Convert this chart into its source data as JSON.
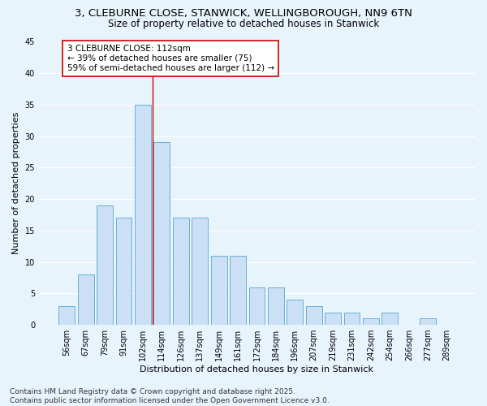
{
  "title_line1": "3, CLEBURNE CLOSE, STANWICK, WELLINGBOROUGH, NN9 6TN",
  "title_line2": "Size of property relative to detached houses in Stanwick",
  "xlabel": "Distribution of detached houses by size in Stanwick",
  "ylabel": "Number of detached properties",
  "categories": [
    "56sqm",
    "67sqm",
    "79sqm",
    "91sqm",
    "102sqm",
    "114sqm",
    "126sqm",
    "137sqm",
    "149sqm",
    "161sqm",
    "172sqm",
    "184sqm",
    "196sqm",
    "207sqm",
    "219sqm",
    "231sqm",
    "242sqm",
    "254sqm",
    "266sqm",
    "277sqm",
    "289sqm"
  ],
  "values": [
    3,
    8,
    19,
    17,
    35,
    29,
    17,
    17,
    11,
    11,
    6,
    6,
    4,
    3,
    2,
    2,
    1,
    2,
    0,
    1,
    0
  ],
  "bar_color": "#cce0f5",
  "bar_edge_color": "#6aaed6",
  "background_color": "#e8f4fc",
  "grid_color": "#ffffff",
  "vline_x_index": 4.5,
  "vline_color": "#cc0000",
  "annotation_text": "3 CLEBURNE CLOSE: 112sqm\n← 39% of detached houses are smaller (75)\n59% of semi-detached houses are larger (112) →",
  "annotation_box_color": "#ffffff",
  "annotation_box_edge_color": "#cc0000",
  "ylim": [
    0,
    45
  ],
  "yticks": [
    0,
    5,
    10,
    15,
    20,
    25,
    30,
    35,
    40,
    45
  ],
  "footer_text": "Contains HM Land Registry data © Crown copyright and database right 2025.\nContains public sector information licensed under the Open Government Licence v3.0.",
  "title_fontsize": 9.5,
  "subtitle_fontsize": 8.5,
  "axis_label_fontsize": 8,
  "tick_fontsize": 7,
  "annotation_fontsize": 7.5,
  "footer_fontsize": 6.5
}
